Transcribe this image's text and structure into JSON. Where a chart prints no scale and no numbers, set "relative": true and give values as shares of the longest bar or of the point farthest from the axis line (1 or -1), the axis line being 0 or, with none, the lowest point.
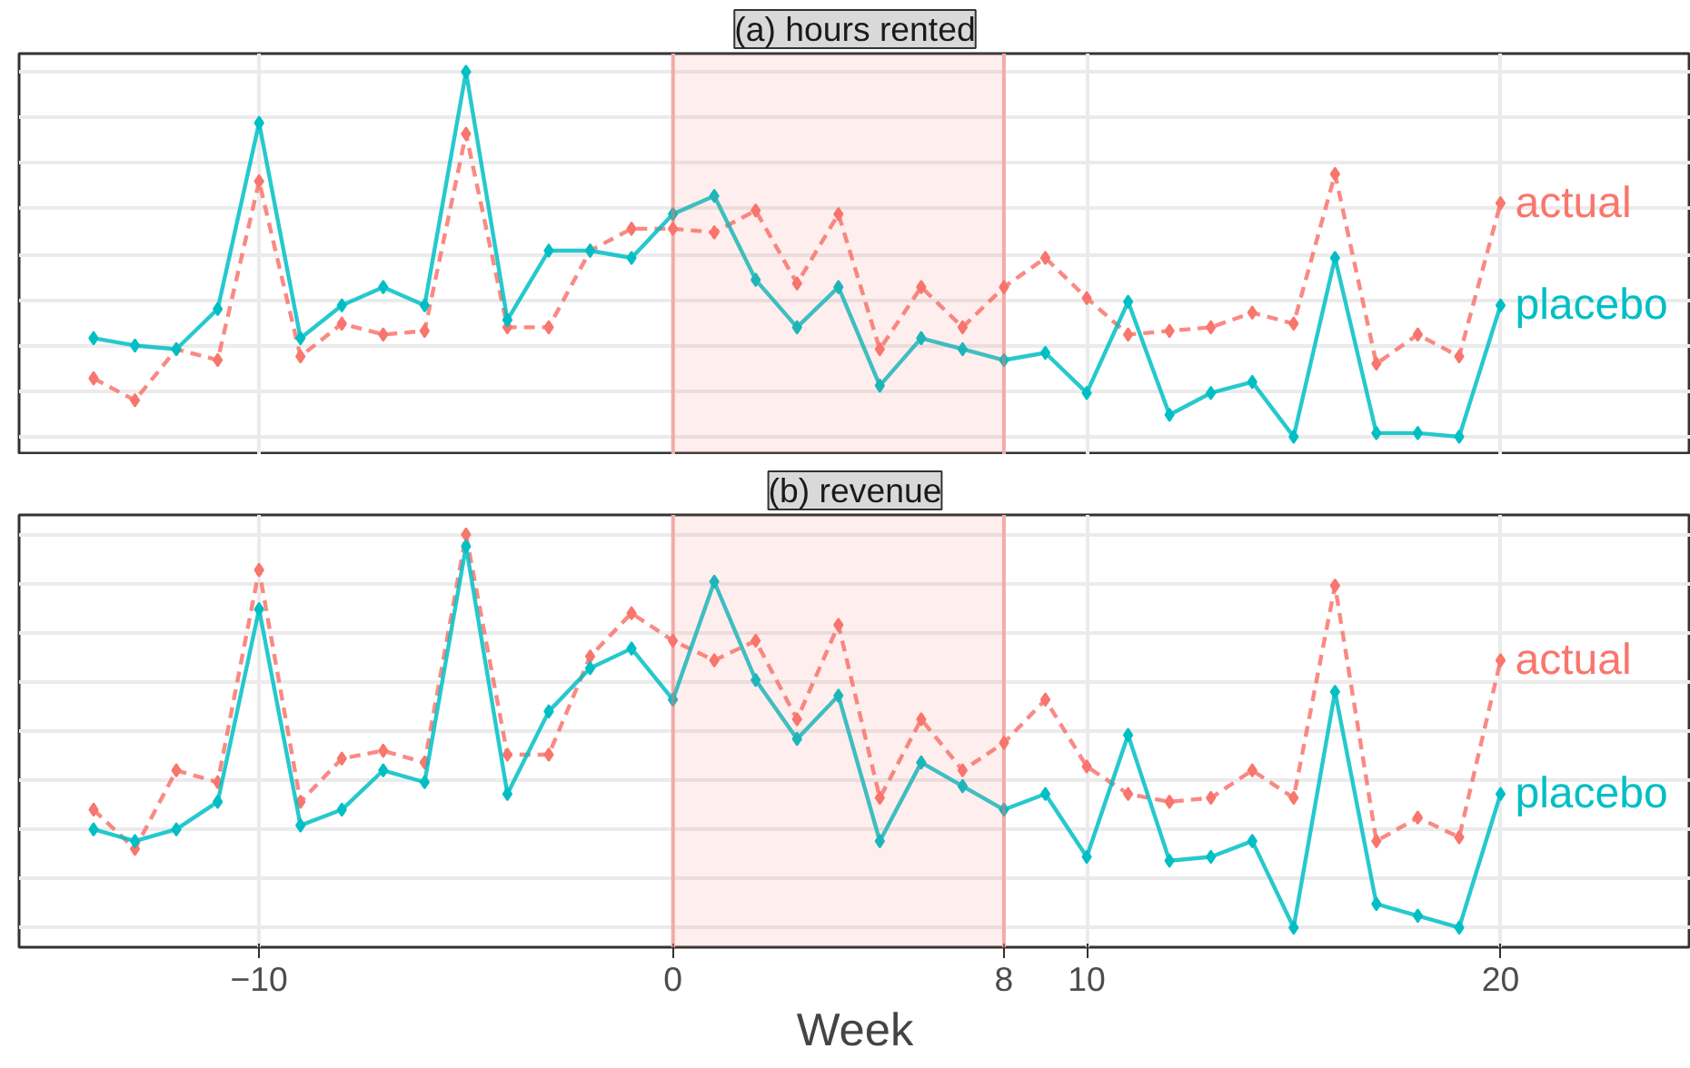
{
  "chart_data": [
    {
      "type": "line",
      "title": "(a) hours rented",
      "relative": true,
      "xlim": [
        -15.8,
        24.6
      ],
      "xticks": [
        -10,
        0,
        8,
        10,
        20
      ],
      "tick_labels": false,
      "grid": true,
      "legend": false,
      "marker": "diamond",
      "bands": [
        {
          "axis": "x",
          "from": 0,
          "to": 8,
          "color": "#f8766d"
        }
      ],
      "x": [
        -14,
        -13,
        -12,
        -11,
        -10,
        -9,
        -8,
        -7,
        -6,
        -5,
        -4,
        -3,
        -2,
        -1,
        0,
        1,
        2,
        3,
        4,
        5,
        6,
        7,
        8,
        9,
        10,
        11,
        12,
        13,
        14,
        15,
        16,
        17,
        18,
        19,
        20
      ],
      "series": [
        {
          "name": "actual",
          "color": "#f8766d",
          "line_style": "dashed",
          "values": [
            0.16,
            0.1,
            0.24,
            0.21,
            0.7,
            0.22,
            0.31,
            0.28,
            0.29,
            0.83,
            0.3,
            0.3,
            0.51,
            0.57,
            0.57,
            0.56,
            0.62,
            0.42,
            0.61,
            0.24,
            0.41,
            0.3,
            0.41,
            0.49,
            0.38,
            0.28,
            0.29,
            0.3,
            0.34,
            0.31,
            0.72,
            0.2,
            0.28,
            0.22,
            0.64
          ]
        },
        {
          "name": "placebo",
          "color": "#00bfc4",
          "line_style": "solid",
          "values": [
            0.27,
            0.25,
            0.24,
            0.35,
            0.86,
            0.27,
            0.36,
            0.41,
            0.36,
            1.0,
            0.32,
            0.51,
            0.51,
            0.49,
            0.61,
            0.66,
            0.43,
            0.3,
            0.41,
            0.14,
            0.27,
            0.24,
            0.21,
            0.23,
            0.12,
            0.37,
            0.06,
            0.12,
            0.15,
            0.0,
            0.49,
            0.01,
            0.01,
            0.0,
            0.36
          ]
        }
      ]
    },
    {
      "type": "line",
      "title": "(b) revenue",
      "relative": true,
      "xlabel": "Week",
      "xlim": [
        -15.8,
        24.6
      ],
      "xticks": [
        -10,
        0,
        8,
        10,
        20
      ],
      "tick_labels": "x",
      "grid": true,
      "legend": false,
      "marker": "diamond",
      "bands": [
        {
          "axis": "x",
          "from": 0,
          "to": 8,
          "color": "#f8766d"
        }
      ],
      "x": [
        -14,
        -13,
        -12,
        -11,
        -10,
        -9,
        -8,
        -7,
        -6,
        -5,
        -4,
        -3,
        -2,
        -1,
        0,
        1,
        2,
        3,
        4,
        5,
        6,
        7,
        8,
        9,
        10,
        11,
        12,
        13,
        14,
        15,
        16,
        17,
        18,
        19,
        20
      ],
      "series": [
        {
          "name": "actual",
          "color": "#f8766d",
          "line_style": "dashed",
          "values": [
            0.3,
            0.2,
            0.4,
            0.37,
            0.91,
            0.32,
            0.43,
            0.45,
            0.42,
            1.0,
            0.44,
            0.44,
            0.69,
            0.8,
            0.73,
            0.68,
            0.73,
            0.53,
            0.77,
            0.33,
            0.53,
            0.4,
            0.47,
            0.58,
            0.41,
            0.34,
            0.32,
            0.33,
            0.4,
            0.33,
            0.87,
            0.22,
            0.28,
            0.23,
            0.68
          ]
        },
        {
          "name": "placebo",
          "color": "#00bfc4",
          "line_style": "solid",
          "values": [
            0.25,
            0.22,
            0.25,
            0.32,
            0.81,
            0.26,
            0.3,
            0.4,
            0.37,
            0.97,
            0.34,
            0.55,
            0.66,
            0.71,
            0.58,
            0.88,
            0.63,
            0.48,
            0.59,
            0.22,
            0.42,
            0.36,
            0.3,
            0.34,
            0.18,
            0.49,
            0.17,
            0.18,
            0.22,
            0.0,
            0.6,
            0.06,
            0.03,
            0.0,
            0.34
          ]
        }
      ]
    }
  ]
}
